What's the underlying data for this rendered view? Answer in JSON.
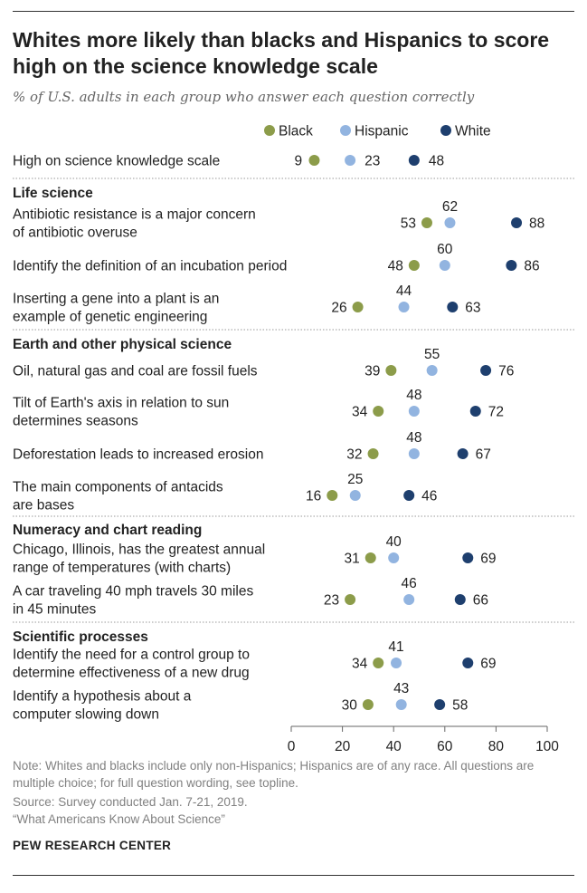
{
  "title": "Whites more likely than blacks and Hispanics to score high on the science knowledge scale",
  "subtitle": "% of U.S. adults in each group who answer each question correctly",
  "colors": {
    "Black": "#8c9c4a",
    "Hispanic": "#92b4e0",
    "White": "#1e3f6e",
    "text": "#222222",
    "note": "#808080",
    "dotted_rule": "#999999"
  },
  "chart_data": {
    "type": "scatter",
    "series_names": [
      "Black",
      "Hispanic",
      "White"
    ],
    "xlim": [
      0,
      100
    ],
    "xticks": [
      0,
      20,
      40,
      60,
      80,
      100
    ],
    "legend": "top",
    "grid": false,
    "groups": [
      {
        "name": "",
        "rows": [
          {
            "label": [
              "High on science knowledge scale"
            ],
            "Black": 9,
            "Hispanic": 23,
            "White": 48
          }
        ]
      },
      {
        "name": "Life science",
        "rows": [
          {
            "label": [
              "Antibiotic resistance is a major concern",
              "of antibiotic overuse"
            ],
            "Black": 53,
            "Hispanic": 62,
            "White": 88
          },
          {
            "label": [
              "Identify the definition of an incubation period"
            ],
            "Black": 48,
            "Hispanic": 60,
            "White": 86
          },
          {
            "label": [
              "Inserting a gene into a plant is an",
              "example of genetic engineering"
            ],
            "Black": 26,
            "Hispanic": 44,
            "White": 63
          }
        ]
      },
      {
        "name": "Earth and other physical science",
        "rows": [
          {
            "label": [
              "Oil, natural gas and coal are fossil fuels"
            ],
            "Black": 39,
            "Hispanic": 55,
            "White": 76
          },
          {
            "label": [
              "Tilt of Earth's axis in relation to sun",
              "determines seasons"
            ],
            "Black": 34,
            "Hispanic": 48,
            "White": 72
          },
          {
            "label": [
              "Deforestation leads to increased erosion"
            ],
            "Black": 32,
            "Hispanic": 48,
            "White": 67
          },
          {
            "label": [
              "The main components of antacids",
              "are bases"
            ],
            "Black": 16,
            "Hispanic": 25,
            "White": 46
          }
        ]
      },
      {
        "name": "Numeracy and chart reading",
        "rows": [
          {
            "label": [
              "Chicago, Illinois, has the greatest annual",
              "range of temperatures (with charts)"
            ],
            "Black": 31,
            "Hispanic": 40,
            "White": 69
          },
          {
            "label": [
              "A car traveling 40 mph travels 30 miles",
              "in 45 minutes"
            ],
            "Black": 23,
            "Hispanic": 46,
            "White": 66
          }
        ]
      },
      {
        "name": "Scientific processes",
        "rows": [
          {
            "label": [
              "Identify the need for a control group to",
              "determine effectiveness of a new drug"
            ],
            "Black": 34,
            "Hispanic": 41,
            "White": 69
          },
          {
            "label": [
              "Identify a hypothesis about a",
              "computer slowing down"
            ],
            "Black": 30,
            "Hispanic": 43,
            "White": 58
          }
        ]
      }
    ]
  },
  "notes": {
    "note": "Note: Whites and blacks include only non-Hispanics; Hispanics are of any race. All questions are multiple choice; for full question wording, see topline.",
    "source": "Source: Survey conducted Jan. 7-21, 2019.",
    "report": "“What Americans Know About Science”"
  },
  "brand": "PEW RESEARCH CENTER"
}
